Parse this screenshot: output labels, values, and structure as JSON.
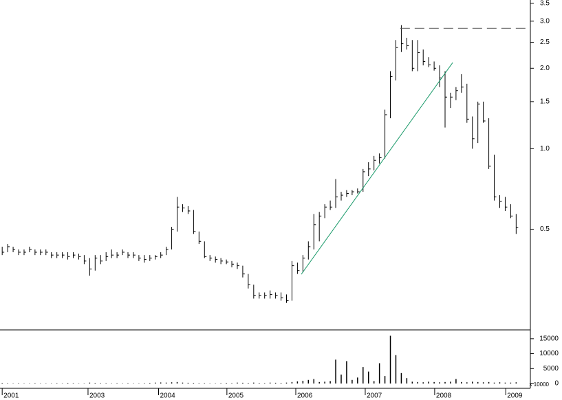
{
  "chart_data": {
    "type": "ohlc",
    "log_scale": true,
    "bar_color": "#000000",
    "xlim": [
      -0.4,
      96.6
    ],
    "xticks": [
      {
        "value": 0,
        "label": "2001"
      },
      {
        "value": 15.7,
        "label": "2003"
      },
      {
        "value": 28.6,
        "label": "2004"
      },
      {
        "value": 41.1,
        "label": "2005"
      },
      {
        "value": 53.7,
        "label": "2006"
      },
      {
        "value": 66.4,
        "label": "2007"
      },
      {
        "value": 79.1,
        "label": "2008"
      },
      {
        "value": 92.1,
        "label": "2009"
      }
    ],
    "ylim": [
      0.21,
      3.6
    ],
    "yticks": [
      0.5,
      {
        "value": 1,
        "label": "1.0"
      },
      1.5,
      {
        "value": 2,
        "label": "2.0"
      },
      2.5,
      {
        "value": 3,
        "label": "3.0"
      },
      3.5
    ],
    "high": [
      0.43,
      0.44,
      0.43,
      0.42,
      0.42,
      0.43,
      0.42,
      0.42,
      0.42,
      0.41,
      0.41,
      0.41,
      0.41,
      0.41,
      0.405,
      0.4,
      0.39,
      0.4,
      0.4,
      0.41,
      0.42,
      0.41,
      0.42,
      0.41,
      0.41,
      0.4,
      0.4,
      0.4,
      0.4,
      0.41,
      0.43,
      0.51,
      0.66,
      0.62,
      0.61,
      0.59,
      0.49,
      0.45,
      0.4,
      0.395,
      0.39,
      0.385,
      0.38,
      0.375,
      0.365,
      0.34,
      0.31,
      0.29,
      0.29,
      0.295,
      0.29,
      0.29,
      0.285,
      0.38,
      0.375,
      0.4,
      0.45,
      0.57,
      0.58,
      0.62,
      0.64,
      0.77,
      0.69,
      0.7,
      0.7,
      0.71,
      0.84,
      0.89,
      0.94,
      0.96,
      1.4,
      1.95,
      2.55,
      2.9,
      2.6,
      2.55,
      2.55,
      2.35,
      2.2,
      2.12,
      2.05,
      1.95,
      1.62,
      1.7,
      1.9,
      1.75,
      1.32,
      1.5,
      1.5,
      1.3,
      0.95,
      0.67,
      0.66,
      0.62,
      0.57
    ],
    "low": [
      0.4,
      0.41,
      0.41,
      0.4,
      0.4,
      0.41,
      0.4,
      0.4,
      0.4,
      0.39,
      0.39,
      0.39,
      0.385,
      0.39,
      0.385,
      0.37,
      0.335,
      0.35,
      0.37,
      0.38,
      0.39,
      0.39,
      0.4,
      0.39,
      0.39,
      0.38,
      0.375,
      0.38,
      0.385,
      0.39,
      0.4,
      0.42,
      0.49,
      0.58,
      0.57,
      0.48,
      0.44,
      0.39,
      0.38,
      0.375,
      0.37,
      0.37,
      0.36,
      0.355,
      0.33,
      0.3,
      0.275,
      0.275,
      0.275,
      0.275,
      0.275,
      0.27,
      0.265,
      0.27,
      0.34,
      0.345,
      0.385,
      0.42,
      0.45,
      0.55,
      0.59,
      0.6,
      0.64,
      0.66,
      0.67,
      0.68,
      0.69,
      0.79,
      0.83,
      0.88,
      0.92,
      1.3,
      1.8,
      2.3,
      2.35,
      1.95,
      1.95,
      2.05,
      2.02,
      1.96,
      1.7,
      1.2,
      1.42,
      1.52,
      1.62,
      1.25,
      1.0,
      1.05,
      1.25,
      0.84,
      0.64,
      0.6,
      0.585,
      0.55,
      0.48
    ],
    "close": [
      0.41,
      0.43,
      0.42,
      0.41,
      0.41,
      0.42,
      0.41,
      0.41,
      0.41,
      0.4,
      0.4,
      0.4,
      0.395,
      0.4,
      0.395,
      0.38,
      0.355,
      0.39,
      0.38,
      0.395,
      0.4,
      0.4,
      0.41,
      0.4,
      0.4,
      0.39,
      0.385,
      0.39,
      0.395,
      0.4,
      0.42,
      0.5,
      0.605,
      0.6,
      0.585,
      0.49,
      0.45,
      0.395,
      0.39,
      0.385,
      0.38,
      0.377,
      0.37,
      0.365,
      0.34,
      0.31,
      0.283,
      0.283,
      0.283,
      0.285,
      0.283,
      0.277,
      0.27,
      0.365,
      0.35,
      0.39,
      0.43,
      0.52,
      0.56,
      0.605,
      0.605,
      0.66,
      0.67,
      0.68,
      0.69,
      0.69,
      0.82,
      0.84,
      0.905,
      0.925,
      1.34,
      1.86,
      2.39,
      2.47,
      2.43,
      2.0,
      2.29,
      2.12,
      2.06,
      2.0,
      1.84,
      1.56,
      1.56,
      1.65,
      1.7,
      1.29,
      1.09,
      1.47,
      1.27,
      0.86,
      0.66,
      0.635,
      0.605,
      0.56,
      0.506
    ],
    "trendline": {
      "x": [
        54.7,
        82.4
      ],
      "y": [
        0.339,
        2.1
      ],
      "color": "#1a9a6a"
    },
    "resistance": {
      "x": [
        72.8,
        96.6
      ],
      "y": [
        2.82,
        2.82
      ],
      "color": "#555555"
    },
    "volume": {
      "ylim": [
        0,
        17500
      ],
      "yticks": [
        0,
        5000,
        10000,
        15000
      ],
      "unit_label": "x 10000",
      "color": "#000000",
      "values": [
        200,
        150,
        100,
        150,
        100,
        100,
        150,
        100,
        100,
        100,
        150,
        100,
        200,
        150,
        100,
        100,
        300,
        200,
        150,
        150,
        100,
        150,
        100,
        150,
        100,
        100,
        150,
        200,
        300,
        350,
        300,
        400,
        500,
        300,
        250,
        200,
        150,
        150,
        100,
        100,
        150,
        200,
        150,
        300,
        250,
        200,
        300,
        200,
        150,
        300,
        250,
        200,
        300,
        500,
        700,
        900,
        1200,
        1500,
        500,
        600,
        800,
        8000,
        3000,
        7500,
        1200,
        2000,
        5500,
        4000,
        800,
        6800,
        2500,
        16000,
        9500,
        3500,
        1800,
        600,
        500,
        400,
        600,
        500,
        400,
        500,
        600,
        1500,
        500,
        400,
        600,
        500,
        400,
        500,
        300,
        400,
        300,
        300,
        400
      ]
    }
  }
}
